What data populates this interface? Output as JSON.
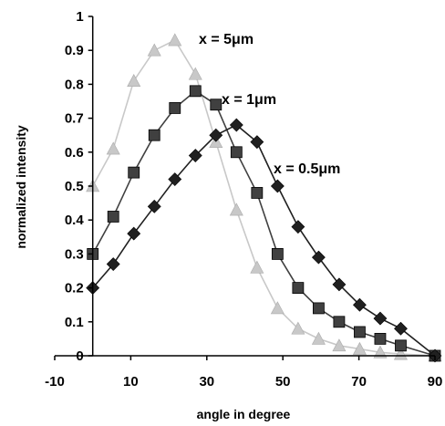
{
  "chart_data": {
    "type": "line",
    "title": "",
    "xlabel": "angle in degree",
    "ylabel": "normalized intensity",
    "xlim": [
      -10,
      90
    ],
    "ylim": [
      0,
      1
    ],
    "xticks": [
      -10,
      10,
      30,
      50,
      70,
      90
    ],
    "yticks": [
      0,
      0.1,
      0.2,
      0.3,
      0.4,
      0.5,
      0.6,
      0.7,
      0.8,
      0.9,
      1
    ],
    "xtick_labels": [
      "-10",
      "10",
      "30",
      "50",
      "70",
      "90"
    ],
    "ytick_labels": [
      "0",
      "0.1",
      "0.2",
      "0.3",
      "0.4",
      "0.5",
      "0.6",
      "0.7",
      "0.8",
      "0.9",
      "1"
    ],
    "grid": false,
    "legend": "none",
    "series": [
      {
        "name": "x = 5μm",
        "marker": "triangle",
        "color": "#c8c8c8",
        "x": [
          0,
          5.4,
          10.8,
          16.2,
          21.6,
          27,
          32.4,
          37.8,
          43.2,
          48.6,
          54,
          59.4,
          64.8,
          70.2,
          75.6,
          81,
          90
        ],
        "y": [
          0.5,
          0.61,
          0.81,
          0.9,
          0.93,
          0.83,
          0.63,
          0.43,
          0.26,
          0.14,
          0.08,
          0.05,
          0.03,
          0.02,
          0.01,
          0.005,
          0
        ]
      },
      {
        "name": "x = 1μm",
        "marker": "square",
        "color": "#404040",
        "x": [
          0,
          5.4,
          10.8,
          16.2,
          21.6,
          27,
          32.4,
          37.8,
          43.2,
          48.6,
          54,
          59.4,
          64.8,
          70.2,
          75.6,
          81,
          90
        ],
        "y": [
          0.3,
          0.41,
          0.54,
          0.65,
          0.73,
          0.78,
          0.74,
          0.6,
          0.48,
          0.3,
          0.2,
          0.14,
          0.1,
          0.07,
          0.05,
          0.03,
          0
        ]
      },
      {
        "name": "x = 0.5μm",
        "marker": "diamond",
        "color": "#202020",
        "x": [
          0,
          5.4,
          10.8,
          16.2,
          21.6,
          27,
          32.4,
          37.8,
          43.2,
          48.6,
          54,
          59.4,
          64.8,
          70.2,
          75.6,
          81,
          90
        ],
        "y": [
          0.2,
          0.27,
          0.36,
          0.44,
          0.52,
          0.59,
          0.65,
          0.68,
          0.63,
          0.5,
          0.38,
          0.29,
          0.21,
          0.15,
          0.11,
          0.08,
          0
        ]
      }
    ],
    "annotations": [
      "x = 5μm",
      "x = 1μm",
      "x = 0.5μm"
    ]
  }
}
